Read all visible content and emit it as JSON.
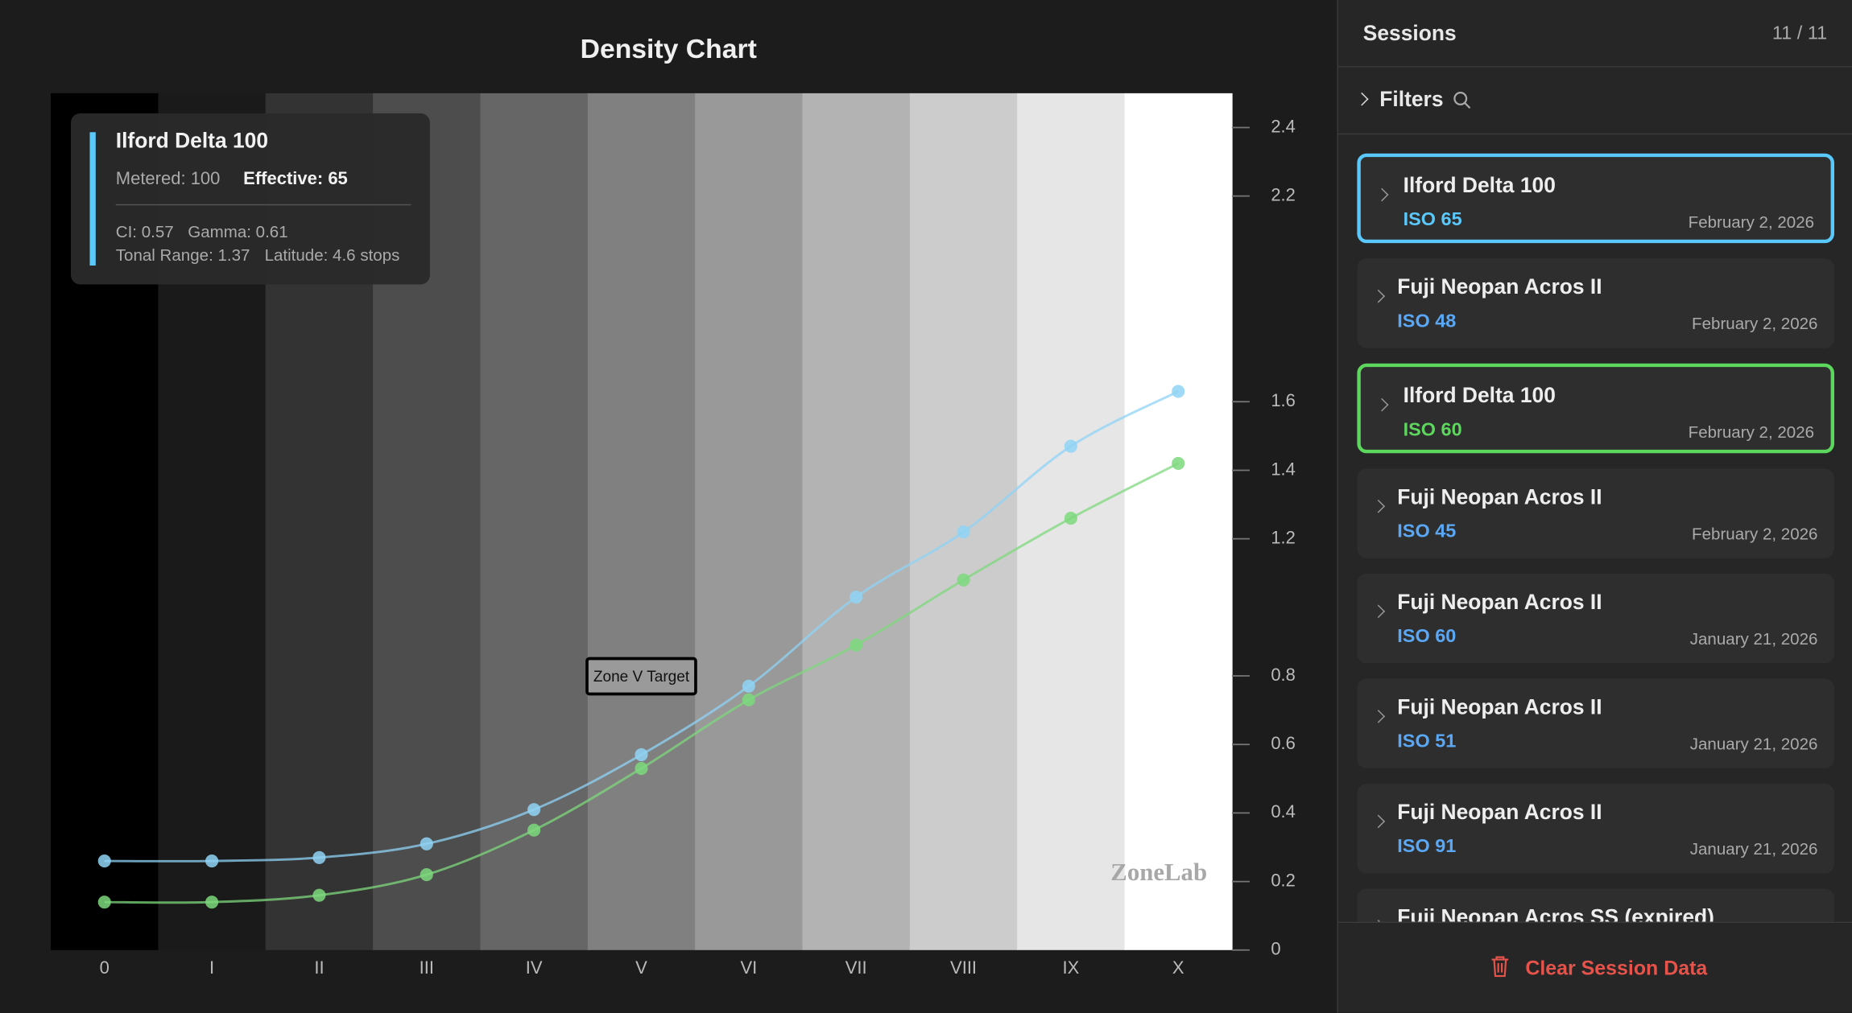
{
  "chart_data": {
    "type": "line",
    "title": "Density Chart",
    "categories": [
      "0",
      "I",
      "II",
      "III",
      "IV",
      "V",
      "VI",
      "VII",
      "VIII",
      "IX",
      "X"
    ],
    "zone_colors": [
      "#000000",
      "#1a1a1a",
      "#333333",
      "#4d4d4d",
      "#666666",
      "#808080",
      "#999999",
      "#b3b3b3",
      "#cccccc",
      "#e6e6e6",
      "#ffffff"
    ],
    "series": [
      {
        "color": "#8fd3f5",
        "values": [
          0.26,
          0.26,
          0.27,
          0.31,
          0.41,
          0.57,
          0.77,
          1.03,
          1.22,
          1.47,
          1.63
        ]
      },
      {
        "color": "#7dd87d",
        "values": [
          0.14,
          0.14,
          0.16,
          0.22,
          0.35,
          0.53,
          0.73,
          0.89,
          1.08,
          1.26,
          1.42
        ]
      }
    ],
    "ylim": [
      0,
      2.5
    ],
    "yticks": [
      0,
      0.2,
      0.4,
      0.6,
      0.8,
      1.2,
      1.4,
      1.6,
      2.2,
      2.4
    ],
    "annotation": "Zone V Target",
    "watermark": "ZoneLab"
  },
  "tooltip": {
    "title": "Ilford Delta 100",
    "metered": "Metered: 100",
    "effective": "Effective: 65",
    "ci": "CI: 0.57",
    "gamma": "Gamma: 0.61",
    "tonal_range": "Tonal Range: 1.37",
    "latitude": "Latitude: 4.6 stops"
  },
  "sidebar": {
    "title": "Sessions",
    "count": "11 / 11",
    "filters": "Filters",
    "sessions": [
      {
        "name": "Ilford Delta 100",
        "iso": "ISO 65",
        "date": "February 2, 2026",
        "highlight": "#5ac8fa"
      },
      {
        "name": "Fuji Neopan Acros II",
        "iso": "ISO 48",
        "date": "February 2, 2026"
      },
      {
        "name": "Ilford Delta 100",
        "iso": "ISO 60",
        "date": "February 2, 2026",
        "highlight": "#5cd65c"
      },
      {
        "name": "Fuji Neopan Acros II",
        "iso": "ISO 45",
        "date": "February 2, 2026"
      },
      {
        "name": "Fuji Neopan Acros II",
        "iso": "ISO 60",
        "date": "January 21, 2026"
      },
      {
        "name": "Fuji Neopan Acros II",
        "iso": "ISO 51",
        "date": "January 21, 2026"
      },
      {
        "name": "Fuji Neopan Acros II",
        "iso": "ISO 91",
        "date": "January 21, 2026"
      },
      {
        "name": "Fuji Neopan Acros SS (expired)"
      }
    ],
    "clear_button": "Clear Session Data"
  }
}
